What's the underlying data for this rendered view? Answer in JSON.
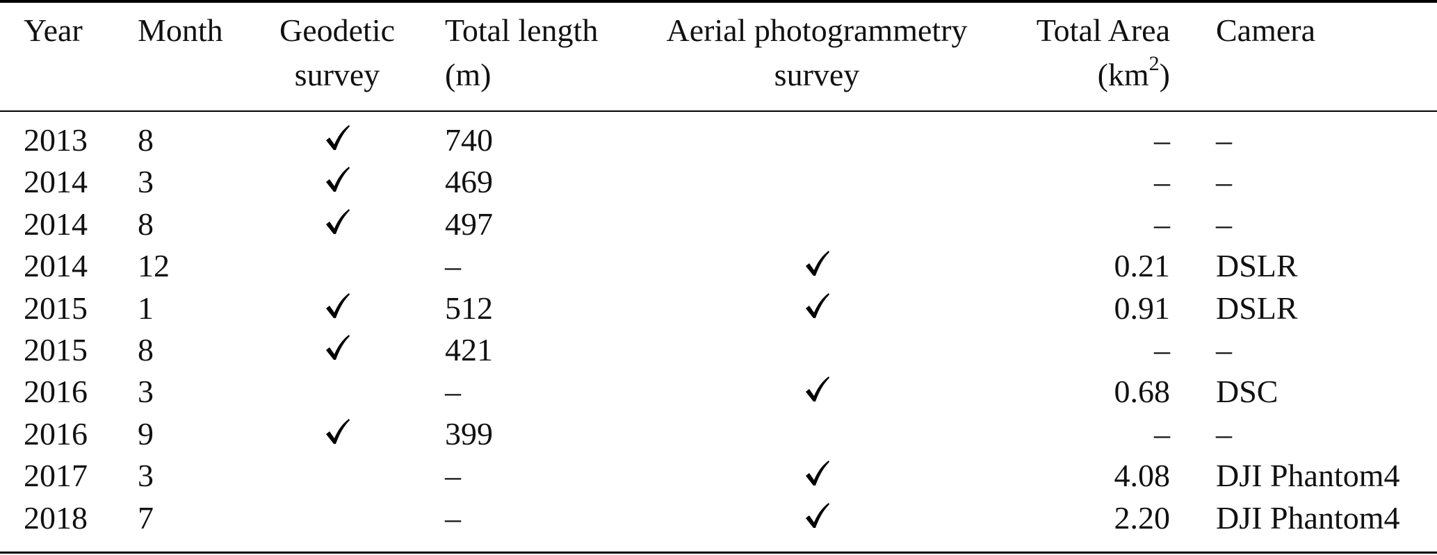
{
  "headers": {
    "year": "Year",
    "month": "Month",
    "geodetic_line1": "Geodetic",
    "geodetic_line2": "survey",
    "length_line1": "Total length",
    "length_line2": "(m)",
    "aerial_line1": "Aerial photogrammetry",
    "aerial_line2": "survey",
    "area_line1": "Total Area",
    "area_line2_prefix": "(km",
    "area_line2_sup": "2",
    "area_line2_suffix": ")",
    "camera": "Camera"
  },
  "rows": [
    {
      "year": "2013",
      "month": "8",
      "geodetic": true,
      "length": "740",
      "aerial": false,
      "area": "–",
      "camera": "–"
    },
    {
      "year": "2014",
      "month": "3",
      "geodetic": true,
      "length": "469",
      "aerial": false,
      "area": "–",
      "camera": "–"
    },
    {
      "year": "2014",
      "month": "8",
      "geodetic": true,
      "length": "497",
      "aerial": false,
      "area": "–",
      "camera": "–"
    },
    {
      "year": "2014",
      "month": "12",
      "geodetic": false,
      "length": "–",
      "aerial": true,
      "area": "0.21",
      "camera": "DSLR"
    },
    {
      "year": "2015",
      "month": "1",
      "geodetic": true,
      "length": "512",
      "aerial": true,
      "area": "0.91",
      "camera": "DSLR"
    },
    {
      "year": "2015",
      "month": "8",
      "geodetic": true,
      "length": "421",
      "aerial": false,
      "area": "–",
      "camera": "–"
    },
    {
      "year": "2016",
      "month": "3",
      "geodetic": false,
      "length": "–",
      "aerial": true,
      "area": "0.68",
      "camera": "DSC"
    },
    {
      "year": "2016",
      "month": "9",
      "geodetic": true,
      "length": "399",
      "aerial": false,
      "area": "–",
      "camera": "–"
    },
    {
      "year": "2017",
      "month": "3",
      "geodetic": false,
      "length": "–",
      "aerial": true,
      "area": "4.08",
      "camera": "DJI Phantom4"
    },
    {
      "year": "2018",
      "month": "7",
      "geodetic": false,
      "length": "–",
      "aerial": true,
      "area": "2.20",
      "camera": "DJI Phantom4"
    }
  ],
  "icons": {
    "check": "check-mark-icon"
  }
}
